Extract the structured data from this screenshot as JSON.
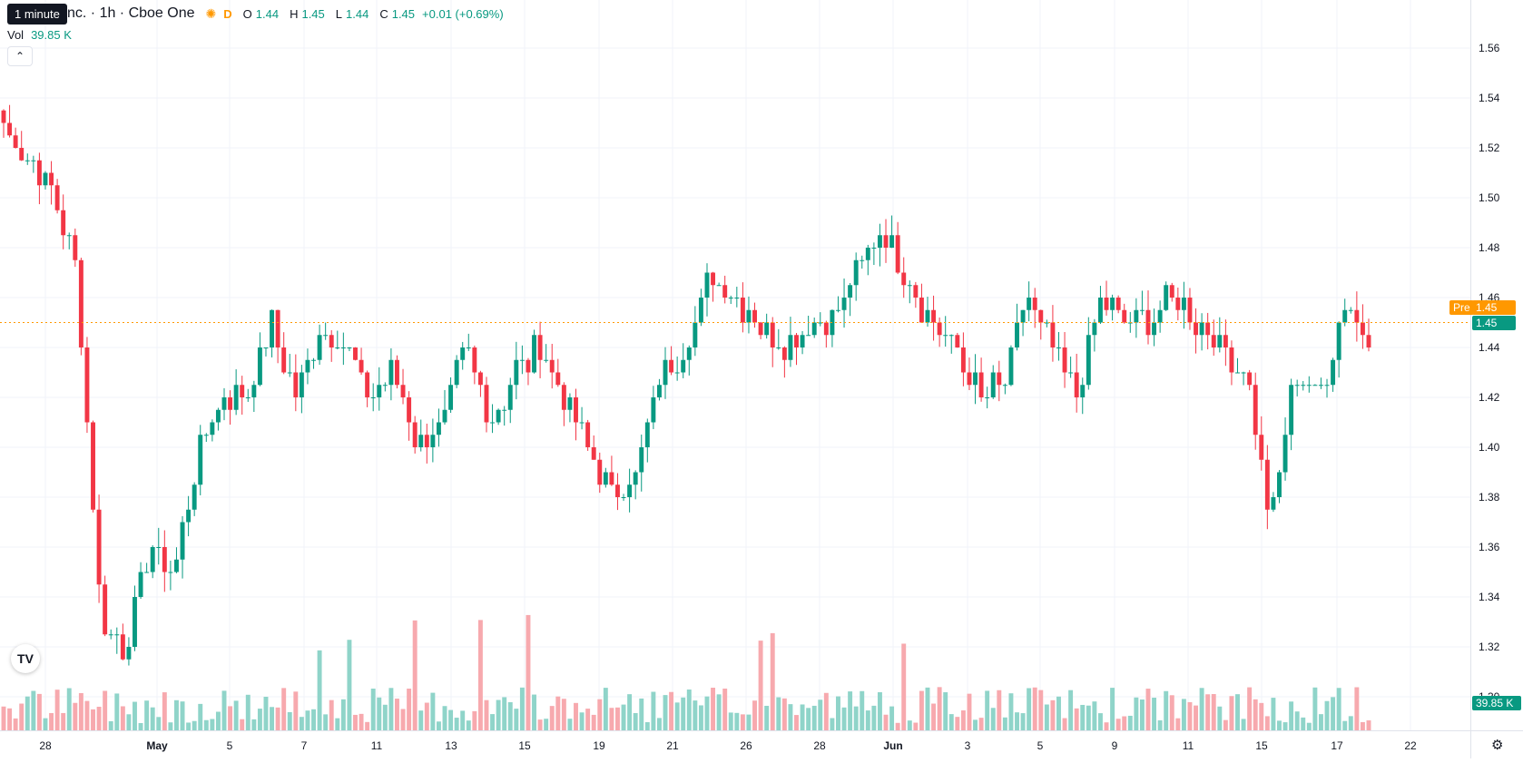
{
  "legend": {
    "tooltip": "1 minute",
    "symbol": "nc. · 1h · Cboe One",
    "d_badge": "D",
    "o_label": "O",
    "o_val": "1.44",
    "h_label": "H",
    "h_val": "1.45",
    "l_label": "L",
    "l_val": "1.44",
    "c_label": "C",
    "c_val": "1.45",
    "change": "+0.01 (+0.69%)",
    "vol_label": "Vol",
    "vol_val": "39.85 K",
    "collapse_icon": "chevron-up-icon",
    "sun_icon": "sun-icon"
  },
  "price_axis": {
    "ticks": [
      "1.56",
      "1.54",
      "1.52",
      "1.50",
      "1.48",
      "1.46",
      "1.44",
      "1.42",
      "1.40",
      "1.38",
      "1.36",
      "1.34",
      "1.32",
      "1.30"
    ],
    "pre_label": "Pre",
    "pre_value": "1.45",
    "last_value": "1.45",
    "vol_value": "39.85 K"
  },
  "time_axis": {
    "ticks": [
      {
        "label": "28",
        "bold": false
      },
      {
        "label": "May",
        "bold": true
      },
      {
        "label": "5",
        "bold": false
      },
      {
        "label": "7",
        "bold": false
      },
      {
        "label": "11",
        "bold": false
      },
      {
        "label": "13",
        "bold": false
      },
      {
        "label": "15",
        "bold": false
      },
      {
        "label": "19",
        "bold": false
      },
      {
        "label": "21",
        "bold": false
      },
      {
        "label": "26",
        "bold": false
      },
      {
        "label": "28",
        "bold": false
      },
      {
        "label": "Jun",
        "bold": true
      },
      {
        "label": "3",
        "bold": false
      },
      {
        "label": "5",
        "bold": false
      },
      {
        "label": "9",
        "bold": false
      },
      {
        "label": "11",
        "bold": false
      },
      {
        "label": "15",
        "bold": false
      },
      {
        "label": "17",
        "bold": false
      },
      {
        "label": "22",
        "bold": false
      }
    ]
  },
  "colors": {
    "up": "#089981",
    "down": "#f23645",
    "up_vol": "#8fd4c9",
    "down_vol": "#f7a9ae",
    "pre": "#ff9800"
  },
  "chart_data": {
    "type": "candlestick",
    "y_range": [
      1.29,
      1.565
    ],
    "current_price": 1.45,
    "key_points": [
      1.53,
      1.515,
      1.505,
      1.47,
      1.33,
      1.32,
      1.36,
      1.35,
      1.4,
      1.42,
      1.42,
      1.45,
      1.42,
      1.45,
      1.44,
      1.42,
      1.43,
      1.4,
      1.41,
      1.44,
      1.41,
      1.43,
      1.44,
      1.42,
      1.4,
      1.38,
      1.39,
      1.43,
      1.44,
      1.47,
      1.46,
      1.45,
      1.44,
      1.45,
      1.45,
      1.47,
      1.49,
      1.47,
      1.45,
      1.44,
      1.42,
      1.425,
      1.46,
      1.44,
      1.42,
      1.46,
      1.45,
      1.45,
      1.46,
      1.45,
      1.44,
      1.43,
      1.37,
      1.43,
      1.42,
      1.46,
      1.445
    ],
    "candle_count": 230
  }
}
